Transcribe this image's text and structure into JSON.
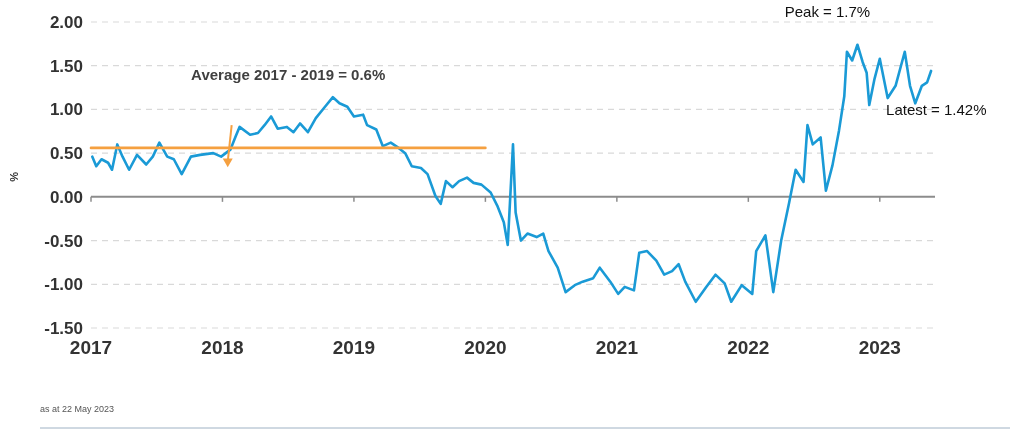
{
  "chart_data": {
    "type": "line",
    "ylabel": "%",
    "xlim": [
      2017,
      2023.42
    ],
    "xticks": [
      2017,
      2018,
      2019,
      2020,
      2021,
      2022,
      2023
    ],
    "ylim": [
      -1.5,
      2
    ],
    "yticks": [
      {
        "value": -1.5,
        "label": "-1.50"
      },
      {
        "value": -1,
        "label": "-1.00"
      },
      {
        "value": -0.5,
        "label": "-0.50"
      },
      {
        "value": 0,
        "label": "0.00"
      },
      {
        "value": 0.5,
        "label": "0.50"
      },
      {
        "value": 1,
        "label": "1.00"
      },
      {
        "value": 1.5,
        "label": "1.50"
      },
      {
        "value": 2,
        "label": "2.00"
      }
    ],
    "grid": "y",
    "marker": "none",
    "line_style": "solid",
    "series": [
      {
        "color": "#1a9ad6",
        "x": [
          2017.01,
          2017.04,
          2017.08,
          2017.13,
          2017.16,
          2017.2,
          2017.24,
          2017.29,
          2017.35,
          2017.42,
          2017.47,
          2017.52,
          2017.58,
          2017.63,
          2017.69,
          2017.76,
          2017.83,
          2017.93,
          2017.99,
          2018.06,
          2018.1,
          2018.13,
          2018.21,
          2018.27,
          2018.32,
          2018.37,
          2018.42,
          2018.49,
          2018.54,
          2018.59,
          2018.65,
          2018.71,
          2018.78,
          2018.84,
          2018.89,
          2018.95,
          2019.0,
          2019.07,
          2019.1,
          2019.17,
          2019.22,
          2019.28,
          2019.34,
          2019.39,
          2019.44,
          2019.51,
          2019.56,
          2019.62,
          2019.66,
          2019.7,
          2019.75,
          2019.8,
          2019.86,
          2019.91,
          2019.97,
          2020.04,
          2020.09,
          2020.14,
          2020.17,
          2020.21,
          2020.23,
          2020.27,
          2020.32,
          2020.39,
          2020.44,
          2020.48,
          2020.55,
          2020.61,
          2020.68,
          2020.74,
          2020.82,
          2020.87,
          2020.95,
          2021.01,
          2021.06,
          2021.13,
          2021.17,
          2021.23,
          2021.3,
          2021.36,
          2021.42,
          2021.47,
          2021.52,
          2021.6,
          2021.68,
          2021.75,
          2021.82,
          2021.87,
          2021.95,
          2022.03,
          2022.06,
          2022.13,
          2022.19,
          2022.25,
          2022.31,
          2022.36,
          2022.42,
          2022.45,
          2022.49,
          2022.55,
          2022.59,
          2022.64,
          2022.69,
          2022.73,
          2022.75,
          2022.79,
          2022.83,
          2022.87,
          2022.9,
          2022.92,
          2022.96,
          2023.0,
          2023.06,
          2023.12,
          2023.19,
          2023.23,
          2023.27,
          2023.32,
          2023.36,
          2023.39
        ],
        "values": [
          0.46,
          0.35,
          0.43,
          0.39,
          0.31,
          0.6,
          0.46,
          0.31,
          0.48,
          0.37,
          0.46,
          0.62,
          0.46,
          0.43,
          0.26,
          0.46,
          0.48,
          0.5,
          0.46,
          0.54,
          0.69,
          0.8,
          0.71,
          0.73,
          0.82,
          0.92,
          0.78,
          0.8,
          0.74,
          0.84,
          0.74,
          0.9,
          1.03,
          1.14,
          1.07,
          1.03,
          0.92,
          0.94,
          0.82,
          0.77,
          0.58,
          0.62,
          0.56,
          0.5,
          0.35,
          0.33,
          0.26,
          0.01,
          -0.08,
          0.18,
          0.11,
          0.18,
          0.22,
          0.16,
          0.14,
          0.05,
          -0.1,
          -0.29,
          -0.55,
          0.6,
          -0.18,
          -0.5,
          -0.42,
          -0.46,
          -0.42,
          -0.62,
          -0.81,
          -1.09,
          -1.01,
          -0.97,
          -0.93,
          -0.81,
          -0.97,
          -1.11,
          -1.03,
          -1.07,
          -0.64,
          -0.62,
          -0.73,
          -0.89,
          -0.85,
          -0.77,
          -0.97,
          -1.2,
          -1.03,
          -0.89,
          -0.99,
          -1.2,
          -1.01,
          -1.11,
          -0.62,
          -0.44,
          -1.09,
          -0.5,
          -0.07,
          0.31,
          0.17,
          0.82,
          0.6,
          0.68,
          0.07,
          0.36,
          0.76,
          1.15,
          1.66,
          1.56,
          1.74,
          1.54,
          1.42,
          1.05,
          1.35,
          1.58,
          1.13,
          1.27,
          1.66,
          1.27,
          1.07,
          1.27,
          1.31,
          1.44
        ]
      },
      {
        "color": "#f5a040",
        "x": [
          2017,
          2020
        ],
        "values": [
          0.56,
          0.56
        ]
      }
    ],
    "annotations": [
      "Average 2017 - 2019 = 0.6%",
      {
        "text": "Peak  = 1.7%",
        "x": 2022.83,
        "y": 1.74
      },
      {
        "text": "Latest = 1.42%",
        "x": 2023.39,
        "y": 1.42
      },
      "as at 22 May 2023"
    ]
  }
}
